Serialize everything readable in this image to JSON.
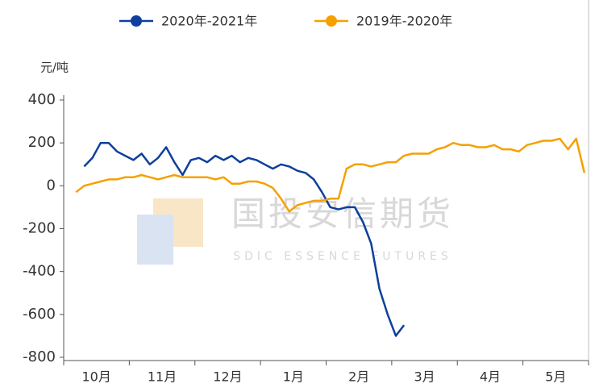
{
  "chart_data": {
    "type": "line",
    "y_unit": "元/吨",
    "watermark": {
      "name": "国投安信期货",
      "name_en": "SDIC ESSENCE FUTURES"
    },
    "categories": [
      null,
      null,
      null,
      null,
      "10月",
      null,
      null,
      null,
      null,
      null,
      null,
      null,
      "11月",
      null,
      null,
      null,
      null,
      null,
      null,
      null,
      "12月",
      null,
      null,
      null,
      null,
      null,
      null,
      null,
      "1月",
      null,
      null,
      null,
      null,
      null,
      null,
      null,
      "2月",
      null,
      null,
      null,
      null,
      null,
      null,
      null,
      "3月",
      null,
      null,
      null,
      null,
      null,
      null,
      null,
      "4月",
      null,
      null,
      null,
      null,
      null,
      null,
      null,
      "5月",
      null,
      null,
      null
    ],
    "series": [
      {
        "name": "2020年-2021年",
        "color": "#0e3f9c",
        "values": [
          null,
          null,
          90,
          130,
          200,
          200,
          160,
          140,
          120,
          150,
          100,
          130,
          180,
          110,
          50,
          120,
          130,
          110,
          140,
          120,
          140,
          110,
          130,
          120,
          100,
          80,
          100,
          90,
          70,
          60,
          30,
          -30,
          -100,
          -110,
          -100,
          -100,
          -170,
          -270,
          -480,
          -600,
          -700,
          -650,
          null,
          null,
          null,
          null,
          null,
          null,
          null,
          null,
          null,
          null,
          null,
          null,
          null,
          null,
          null,
          null,
          null,
          null,
          null,
          null,
          null,
          null
        ]
      },
      {
        "name": "2019年-2020年",
        "color": "#f5a000",
        "values": [
          null,
          -30,
          0,
          10,
          20,
          30,
          30,
          40,
          40,
          50,
          40,
          30,
          40,
          50,
          40,
          40,
          40,
          40,
          30,
          40,
          10,
          10,
          20,
          20,
          10,
          -10,
          -60,
          -120,
          -90,
          -80,
          -70,
          -70,
          -60,
          -60,
          80,
          100,
          100,
          90,
          100,
          110,
          110,
          140,
          150,
          150,
          150,
          170,
          180,
          200,
          190,
          190,
          180,
          180,
          190,
          170,
          170,
          160,
          190,
          200,
          210,
          210,
          220,
          170,
          220,
          60
        ]
      }
    ],
    "ylim": [
      -800,
      400
    ],
    "yticks": [
      400,
      200,
      0,
      -200,
      -400,
      -600,
      -800
    ],
    "legend": "top",
    "grid": false
  }
}
